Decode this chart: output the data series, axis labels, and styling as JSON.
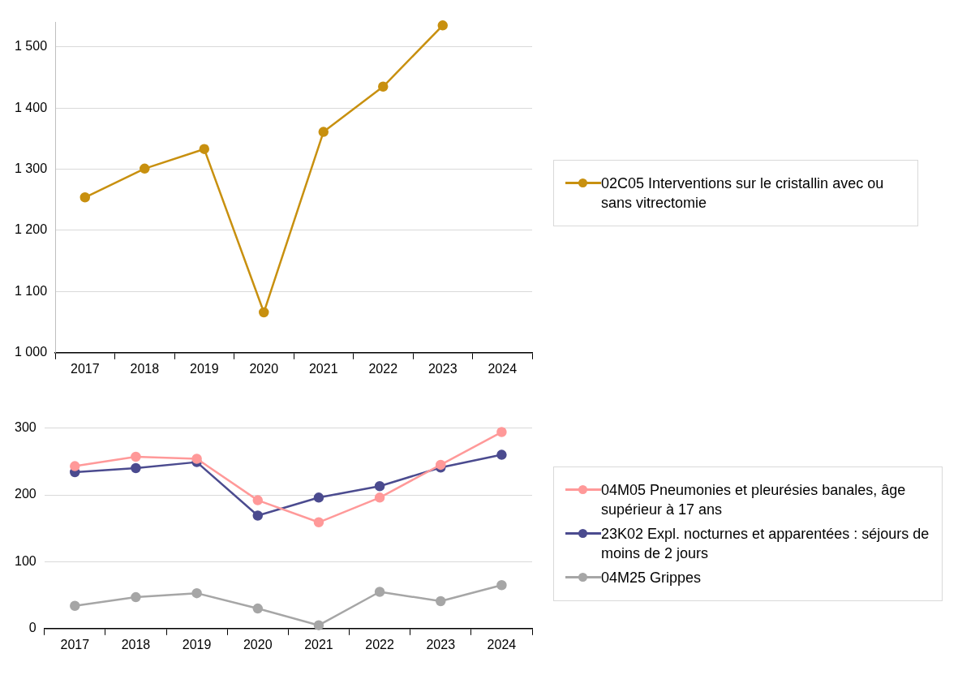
{
  "chart_data": [
    {
      "type": "line",
      "categories": [
        "2017",
        "2018",
        "2019",
        "2020",
        "2021",
        "2022",
        "2023",
        "2024"
      ],
      "series": [
        {
          "name": "02C05 Interventions sur le cristallin avec ou sans vitrectomie",
          "color": "#c8900f",
          "values": [
            1254,
            1301,
            1333,
            1066,
            1361,
            1435,
            1535,
            null
          ]
        }
      ],
      "ylim": [
        1000,
        1540
      ],
      "yticks": [
        {
          "value": 1000,
          "label": "1 000"
        },
        {
          "value": 1100,
          "label": "1 100"
        },
        {
          "value": 1200,
          "label": "1 200"
        },
        {
          "value": 1300,
          "label": "1 300"
        },
        {
          "value": 1400,
          "label": "1 400"
        },
        {
          "value": 1500,
          "label": "1 500"
        }
      ],
      "grid": "y",
      "legend": "right",
      "marker": "circle",
      "line_style": "solid"
    },
    {
      "type": "line",
      "categories": [
        "2017",
        "2018",
        "2019",
        "2020",
        "2021",
        "2022",
        "2023",
        "2024"
      ],
      "series": [
        {
          "name": "04M05 Pneumonies et pleurésies banales, âge supérieur à 17 ans",
          "color": "#ff9999",
          "values": [
            243,
            257,
            254,
            192,
            159,
            196,
            245,
            294
          ]
        },
        {
          "name": "23K02 Expl. nocturnes et apparentées : séjours de moins de 2 jours",
          "color": "#4b4b8f",
          "values": [
            234,
            240,
            249,
            169,
            196,
            213,
            241,
            260
          ]
        },
        {
          "name": "04M25 Grippes",
          "color": "#a6a6a6",
          "values": [
            34,
            47,
            53,
            30,
            5,
            55,
            41,
            65
          ]
        }
      ],
      "ylim": [
        0,
        300
      ],
      "yticks": [
        0,
        100,
        200,
        300
      ],
      "grid": "y",
      "legend": "right",
      "marker": "circle",
      "line_style": "solid"
    }
  ]
}
